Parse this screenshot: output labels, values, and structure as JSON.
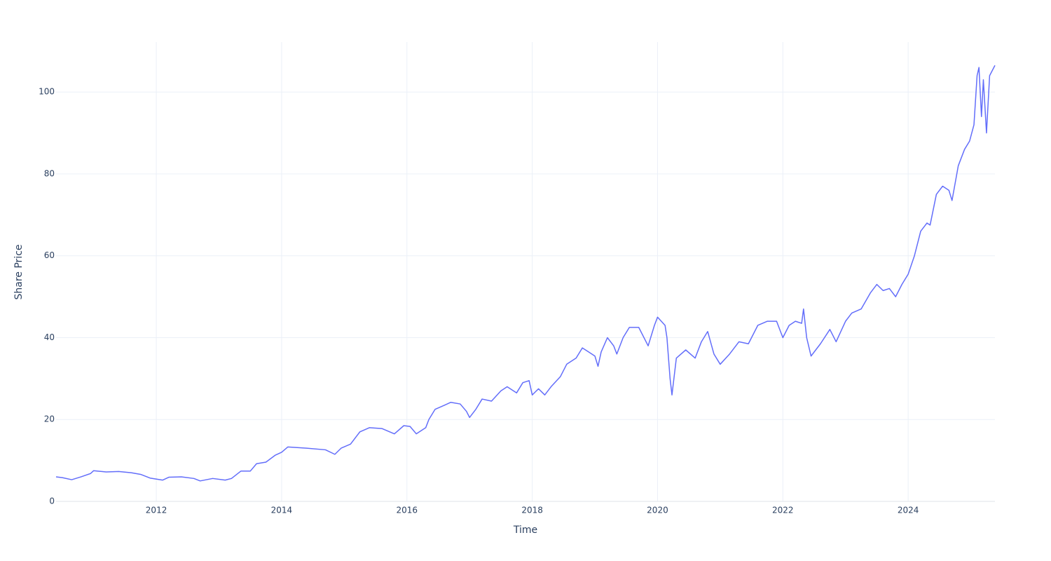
{
  "chart_data": {
    "type": "line",
    "x_label": "Time",
    "y_label": "Share Price",
    "color": "#636efa",
    "grid": true,
    "xlim": [
      2010.4,
      2025.385
    ],
    "xticks": [
      2012,
      2014,
      2016,
      2018,
      2020,
      2022,
      2024
    ],
    "ylim": [
      0,
      112.2
    ],
    "yticks": [
      0,
      20,
      40,
      60,
      80,
      100
    ],
    "x": [
      2010.4,
      2010.5,
      2010.65,
      2010.8,
      2010.95,
      2011.0,
      2011.2,
      2011.4,
      2011.6,
      2011.75,
      2011.9,
      2012.1,
      2012.2,
      2012.4,
      2012.6,
      2012.7,
      2012.9,
      2013.1,
      2013.2,
      2013.35,
      2013.5,
      2013.6,
      2013.75,
      2013.9,
      2014.0,
      2014.1,
      2014.4,
      2014.7,
      2014.85,
      2014.95,
      2015.1,
      2015.25,
      2015.4,
      2015.6,
      2015.8,
      2015.95,
      2016.05,
      2016.15,
      2016.3,
      2016.35,
      2016.45,
      2016.6,
      2016.7,
      2016.85,
      2016.95,
      2017.0,
      2017.1,
      2017.2,
      2017.35,
      2017.5,
      2017.6,
      2017.75,
      2017.85,
      2017.95,
      2018.0,
      2018.1,
      2018.2,
      2018.3,
      2018.45,
      2018.55,
      2018.7,
      2018.8,
      2018.9,
      2019.0,
      2019.05,
      2019.1,
      2019.2,
      2019.3,
      2019.35,
      2019.45,
      2019.55,
      2019.7,
      2019.85,
      2019.95,
      2020.0,
      2020.12,
      2020.15,
      2020.2,
      2020.23,
      2020.3,
      2020.45,
      2020.6,
      2020.7,
      2020.8,
      2020.9,
      2021.0,
      2021.15,
      2021.3,
      2021.45,
      2021.6,
      2021.75,
      2021.9,
      2022.0,
      2022.1,
      2022.2,
      2022.3,
      2022.33,
      2022.38,
      2022.45,
      2022.6,
      2022.75,
      2022.85,
      2023.0,
      2023.1,
      2023.25,
      2023.4,
      2023.5,
      2023.6,
      2023.7,
      2023.8,
      2023.9,
      2024.0,
      2024.1,
      2024.2,
      2024.3,
      2024.35,
      2024.45,
      2024.55,
      2024.65,
      2024.7,
      2024.8,
      2024.9,
      2024.98,
      2025.05,
      2025.1,
      2025.13,
      2025.17,
      2025.2,
      2025.25,
      2025.3,
      2025.385
    ],
    "values": [
      6.0,
      5.8,
      5.3,
      6.0,
      6.8,
      7.5,
      7.2,
      7.3,
      7.0,
      6.6,
      5.7,
      5.2,
      5.9,
      6.0,
      5.6,
      5.0,
      5.6,
      5.2,
      5.6,
      7.4,
      7.4,
      9.2,
      9.6,
      11.3,
      12.0,
      13.3,
      13.0,
      12.6,
      11.5,
      13.0,
      14.0,
      17.0,
      18.0,
      17.8,
      16.5,
      18.5,
      18.3,
      16.5,
      18.0,
      20.0,
      22.5,
      23.5,
      24.2,
      23.8,
      22.0,
      20.5,
      22.5,
      25.0,
      24.5,
      27.0,
      28.0,
      26.5,
      29.0,
      29.5,
      26.0,
      27.5,
      26.0,
      28.0,
      30.5,
      33.5,
      35.0,
      37.5,
      36.5,
      35.5,
      33.0,
      36.5,
      40.0,
      38.0,
      36.0,
      40.0,
      42.5,
      42.5,
      38.0,
      43.0,
      45.0,
      43.0,
      40.0,
      30.0,
      26.0,
      35.0,
      37.0,
      35.0,
      39.0,
      41.5,
      36.0,
      33.5,
      36.0,
      39.0,
      38.5,
      43.0,
      44.0,
      44.0,
      40.0,
      43.0,
      44.0,
      43.5,
      47.0,
      40.0,
      35.5,
      38.5,
      42.0,
      39.0,
      44.0,
      46.0,
      47.0,
      51.0,
      53.0,
      51.5,
      52.0,
      50.0,
      53.0,
      55.5,
      60.0,
      66.0,
      68.0,
      67.5,
      75.0,
      77.0,
      76.0,
      73.5,
      82.0,
      86.0,
      88.0,
      92.0,
      104.0,
      106.0,
      94.0,
      103.0,
      90.0,
      104.0,
      106.5
    ]
  }
}
